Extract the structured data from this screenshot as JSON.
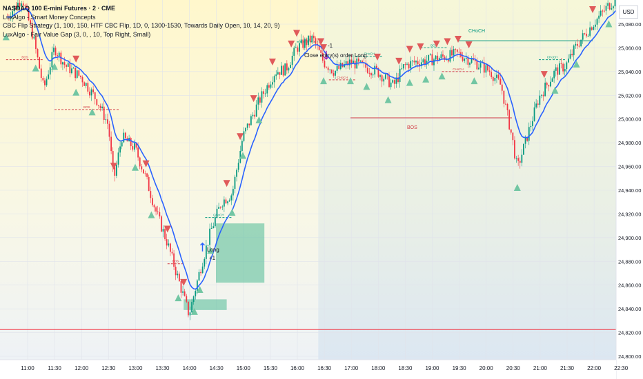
{
  "legend": {
    "symbol": "NASDAQ 100 E-mini Futures · 2 · CME",
    "ind1": "LuxAlgo - Smart Money Concepts",
    "ind2": "CBC Flip Strategy (1, 100, 150, HTF CBC Flip, 1D, 0, 1300-1530, Towards Daily Open, 10, 14, 20, 9)",
    "ind3": "LuxAlgo - Fair Value Gap (3, 0, , 10, Top Right, Small)"
  },
  "currency": "USD",
  "annotations": {
    "close_entry": "Close entry(s) order Long",
    "close_qty": "-1",
    "long_label": "Long",
    "long_qty": "+1",
    "choch_big": "CHoCH",
    "bos_big": "BOS"
  },
  "colors": {
    "up": "#089981",
    "down": "#f23645",
    "ema": "#2962ff",
    "fvg": "#5ebf9d",
    "bear_marker": "#e05a5a",
    "bull_marker": "#72c6a3",
    "hline": "#f23645",
    "struct_red": "#d23b45",
    "struct_green": "#089981"
  },
  "chart_data": {
    "type": "candlestick",
    "symbol": "NQ",
    "timeframe": "2m",
    "ylim": [
      24800,
      25100
    ],
    "x_ticks": [
      "11:00",
      "11:30",
      "12:00",
      "12:30",
      "13:00",
      "13:30",
      "14:00",
      "14:30",
      "15:00",
      "15:30",
      "16:00",
      "16:30",
      "17:00",
      "18:00",
      "18:30",
      "19:00",
      "19:30",
      "20:00",
      "20:30",
      "21:00",
      "21:30",
      "22:00",
      "22:30"
    ],
    "y_ticks": [
      "24,800.00",
      "24,820.00",
      "24,840.00",
      "24,860.00",
      "24,880.00",
      "24,900.00",
      "24,920.00",
      "24,940.00",
      "24,960.00",
      "24,980.00",
      "25,000.00",
      "25,020.00",
      "25,040.00",
      "25,060.00",
      "25,080.00"
    ],
    "horizontal_line": 24822.5,
    "price_path": [
      [
        10.6,
        25085
      ],
      [
        10.9,
        25102
      ],
      [
        11.1,
        25070
      ],
      [
        11.3,
        25025
      ],
      [
        11.5,
        25060
      ],
      [
        11.7,
        25045
      ],
      [
        12.0,
        25035
      ],
      [
        12.3,
        25015
      ],
      [
        12.5,
        24995
      ],
      [
        12.6,
        24948
      ],
      [
        12.75,
        24985
      ],
      [
        13.0,
        24975
      ],
      [
        13.2,
        24950
      ],
      [
        13.4,
        24920
      ],
      [
        13.6,
        24895
      ],
      [
        13.8,
        24865
      ],
      [
        14.0,
        24835
      ],
      [
        14.2,
        24872
      ],
      [
        14.4,
        24905
      ],
      [
        14.6,
        24930
      ],
      [
        14.8,
        24937
      ],
      [
        15.0,
        24985
      ],
      [
        15.3,
        25015
      ],
      [
        15.6,
        25040
      ],
      [
        15.8,
        25042
      ],
      [
        16.0,
        25060
      ],
      [
        16.3,
        25068
      ],
      [
        16.5,
        25048
      ],
      [
        16.7,
        25040
      ],
      [
        17.0,
        25048
      ],
      [
        17.5,
        25040
      ],
      [
        17.8,
        25028
      ],
      [
        18.0,
        25045
      ],
      [
        18.2,
        25048
      ],
      [
        18.5,
        25050
      ],
      [
        18.8,
        25053
      ],
      [
        19.0,
        25055
      ],
      [
        19.3,
        25048
      ],
      [
        19.6,
        25040
      ],
      [
        19.8,
        25028
      ],
      [
        20.0,
        24985
      ],
      [
        20.1,
        24958
      ],
      [
        20.3,
        24988
      ],
      [
        20.5,
        25018
      ],
      [
        20.8,
        25040
      ],
      [
        21.0,
        25045
      ],
      [
        21.2,
        25062
      ],
      [
        21.5,
        25080
      ],
      [
        21.8,
        25096
      ],
      [
        22.0,
        25103
      ],
      [
        22.3,
        25105
      ],
      [
        22.55,
        25098
      ]
    ],
    "fair_value_gaps": [
      {
        "t0": 14.5,
        "t1": 15.4,
        "y0": 24862,
        "y1": 24912
      },
      {
        "t0": 13.9,
        "t1": 14.7,
        "y0": 24839,
        "y1": 24848
      }
    ],
    "structures": [
      {
        "label": "BOS",
        "t0": 17.0,
        "t1": 20.0,
        "y": 25001,
        "color": "red"
      },
      {
        "label": "CHoCH",
        "t0": 19.0,
        "t1": 21.5,
        "y": 25066,
        "color": "green"
      },
      {
        "label": "BOS",
        "t0": 10.6,
        "t1": 11.3,
        "y": 25050,
        "color": "red"
      },
      {
        "label": "BOS",
        "t0": 11.5,
        "t1": 12.7,
        "y": 25008,
        "color": "red"
      },
      {
        "label": "BOS",
        "t0": 13.6,
        "t1": 13.9,
        "y": 24878,
        "color": "red"
      },
      {
        "label": "CHoCH",
        "t0": 14.3,
        "t1": 14.8,
        "y": 24917,
        "color": "green"
      },
      {
        "label": "BOS",
        "t0": 16.0,
        "t1": 16.4,
        "y": 25065,
        "color": "green"
      },
      {
        "label": "CHoCH",
        "t0": 16.6,
        "t1": 17.1,
        "y": 25033,
        "color": "red"
      },
      {
        "label": "CHoCH",
        "t0": 17.1,
        "t1": 17.6,
        "y": 25053,
        "color": "green"
      },
      {
        "label": "CHoCH",
        "t0": 18.7,
        "t1": 19.3,
        "y": 25040,
        "color": "red"
      },
      {
        "label": "BOS",
        "t0": 18.3,
        "t1": 18.8,
        "y": 25060,
        "color": "green"
      },
      {
        "label": "CHoCH",
        "t0": 20.5,
        "t1": 21.0,
        "y": 25050,
        "color": "green"
      }
    ],
    "bear_markers": [
      10.9,
      11.9,
      12.6,
      13.2,
      13.6,
      13.9,
      14.7,
      15.2,
      15.9,
      16.0,
      16.5,
      17.5,
      17.9,
      18.3,
      18.6,
      18.8,
      19.0,
      19.2,
      20.6,
      21.5,
      14.95,
      15.55,
      16.45,
      18.1
    ],
    "bull_markers": [
      10.6,
      11.15,
      11.5,
      11.9,
      12.2,
      13.0,
      13.3,
      13.8,
      14.1,
      14.2,
      14.4,
      14.8,
      15.0,
      15.3,
      16.5,
      17.0,
      17.3,
      17.7,
      18.1,
      18.4,
      18.7,
      19.3,
      20.1,
      20.8,
      21.2,
      21.8,
      22.1,
      22.3
    ],
    "trades": [
      {
        "type": "entry",
        "label": "Long",
        "qty": "+1",
        "t": 14.25
      },
      {
        "type": "exit",
        "label": "Close entry(s) order Long",
        "qty": "-1",
        "t": 16.55
      }
    ],
    "session_shading": {
      "t_split": 16.4
    }
  }
}
